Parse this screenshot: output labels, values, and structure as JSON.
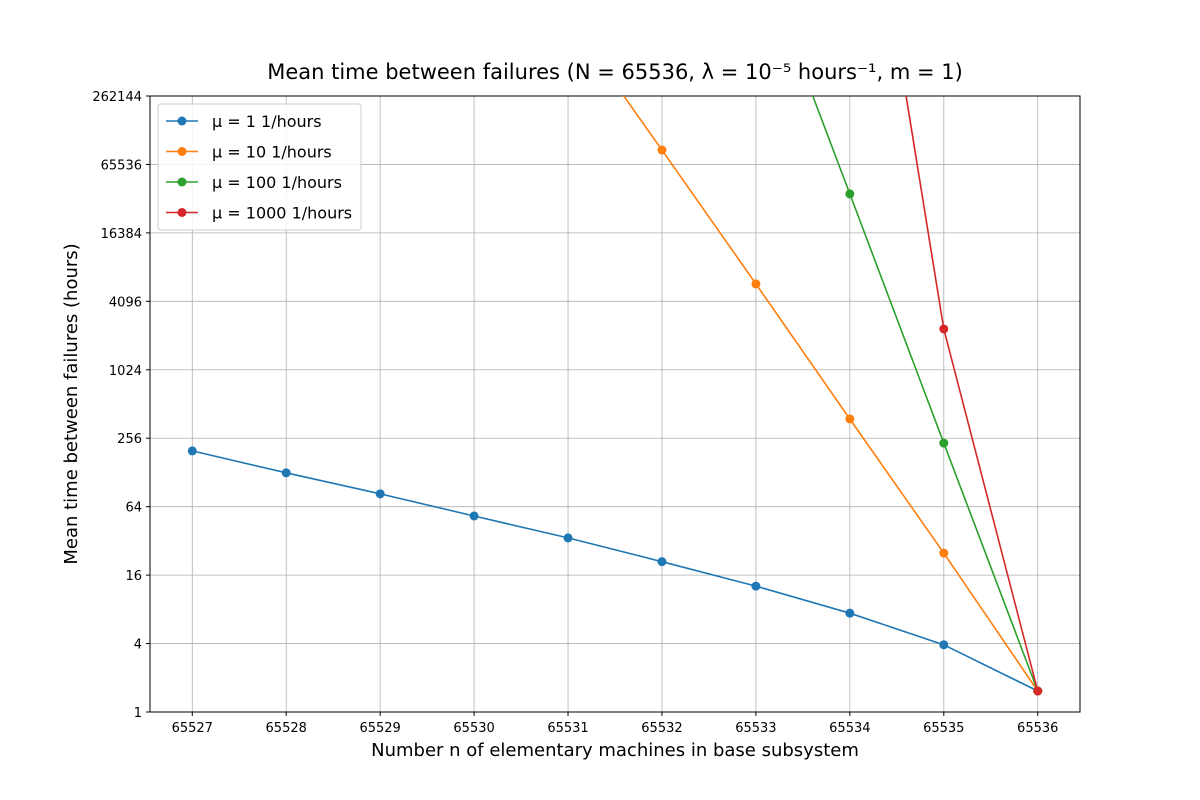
{
  "chart_data": {
    "type": "line",
    "title": "Mean time between failures (N = 65536, λ = 10⁻⁵ hours⁻¹, m = 1)",
    "x_label": "Number n of elementary machines in base subsystem",
    "y_label": "Mean time between failures (hours)",
    "x": [
      65527,
      65528,
      65529,
      65530,
      65531,
      65532,
      65533,
      65534,
      65535,
      65536
    ],
    "series": [
      {
        "name": "μ = 1 1/hours",
        "color": "#1f77b4",
        "values": [
          198,
          127,
          83,
          53,
          34,
          21,
          12.8,
          7.4,
          3.9,
          1.53
        ]
      },
      {
        "name": "μ = 10 1/hours",
        "color": "#ff7f0e",
        "values": [
          null,
          null,
          null,
          null,
          1300000,
          87700,
          5830,
          378,
          25,
          1.53
        ]
      },
      {
        "name": "μ = 100 1/hours",
        "color": "#2ca02c",
        "values": [
          null,
          null,
          null,
          null,
          null,
          null,
          5500000,
          36100,
          232,
          1.53
        ]
      },
      {
        "name": "μ = 1000 1/hours",
        "color": "#d62728",
        "values": [
          null,
          null,
          null,
          null,
          null,
          null,
          null,
          300000000,
          2340,
          1.53
        ]
      }
    ],
    "xlim": [
      65526.55,
      65536.45
    ],
    "xticks": [
      65527,
      65528,
      65529,
      65530,
      65531,
      65532,
      65533,
      65534,
      65535,
      65536
    ],
    "ylim": [
      1,
      262144
    ],
    "yticks": [
      1,
      4,
      16,
      64,
      256,
      1024,
      4096,
      16384,
      65536,
      262144
    ],
    "yscale": "log2",
    "grid": true,
    "legend": "upper-left"
  }
}
